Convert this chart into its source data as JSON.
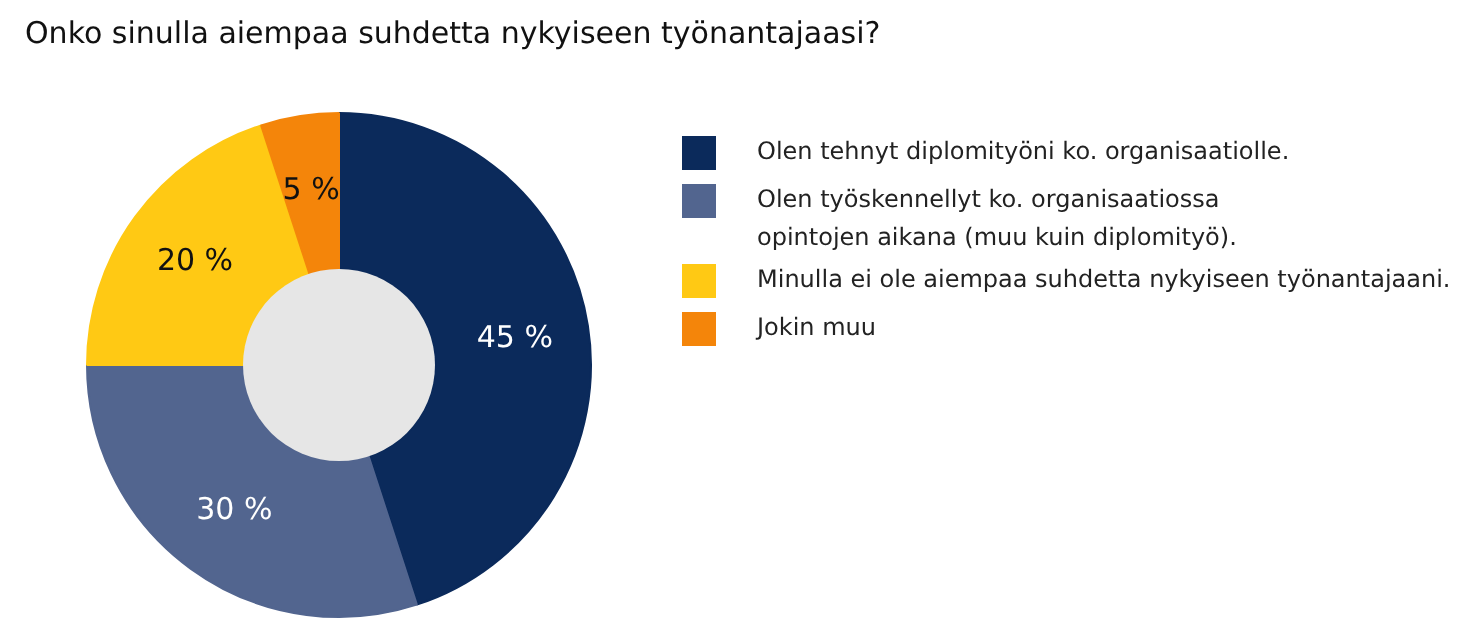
{
  "chart_data": {
    "type": "donut",
    "title": "Onko sinulla aiempaa suhdetta nykyiseen työnantajaasi?",
    "categories": [
      "Olen tehnyt diplomityöni ko. organisaatiolle.",
      "Olen työskennellyt ko. organisaatiossa\nopintojen aikana (muu kuin diplomityö).",
      "Minulla ei ole aiempaa suhdetta nykyiseen työnantajaani.",
      "Jokin muu"
    ],
    "values": [
      45,
      30,
      20,
      5
    ],
    "colors": [
      "#0b2a5b",
      "#52658f",
      "#ffc914",
      "#f4850a"
    ],
    "value_labels": [
      "45 %",
      "30 %",
      "20 %",
      "5 %"
    ],
    "legend": "right"
  }
}
